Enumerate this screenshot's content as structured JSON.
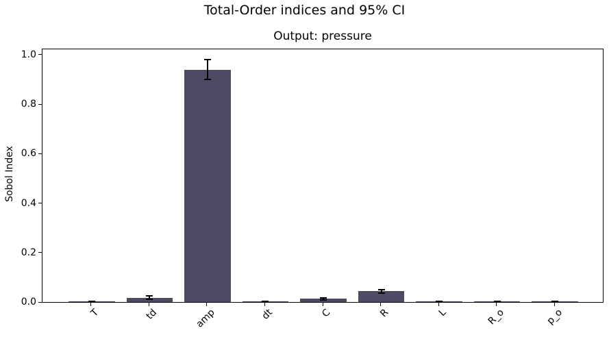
{
  "chart_data": {
    "type": "bar",
    "title": "Total-Order indices and 95% CI",
    "subtitle": "Output: pressure",
    "xlabel": "",
    "ylabel": "Sobol Index",
    "categories": [
      "T",
      "td",
      "amp",
      "dt",
      "C",
      "R",
      "L",
      "R_o",
      "p_o"
    ],
    "values": [
      0.002,
      0.018,
      0.94,
      0.002,
      0.013,
      0.043,
      0.001,
      0.001,
      0.001
    ],
    "error_95ci": [
      0.002,
      0.008,
      0.04,
      0.002,
      0.005,
      0.008,
      0.001,
      0.001,
      0.001
    ],
    "yticks": [
      0.0,
      0.2,
      0.4,
      0.6,
      0.8,
      1.0
    ],
    "ytick_labels": [
      "0.0",
      "0.2",
      "0.4",
      "0.6",
      "0.8",
      "1.0"
    ],
    "ylim": [
      0,
      1.022
    ],
    "x_tick_rotation": 45,
    "grid": false,
    "legend": null,
    "bar_color": "#4d4b64",
    "error_color": "#000000",
    "axis_color": "#000000",
    "background_color": "#ffffff"
  }
}
